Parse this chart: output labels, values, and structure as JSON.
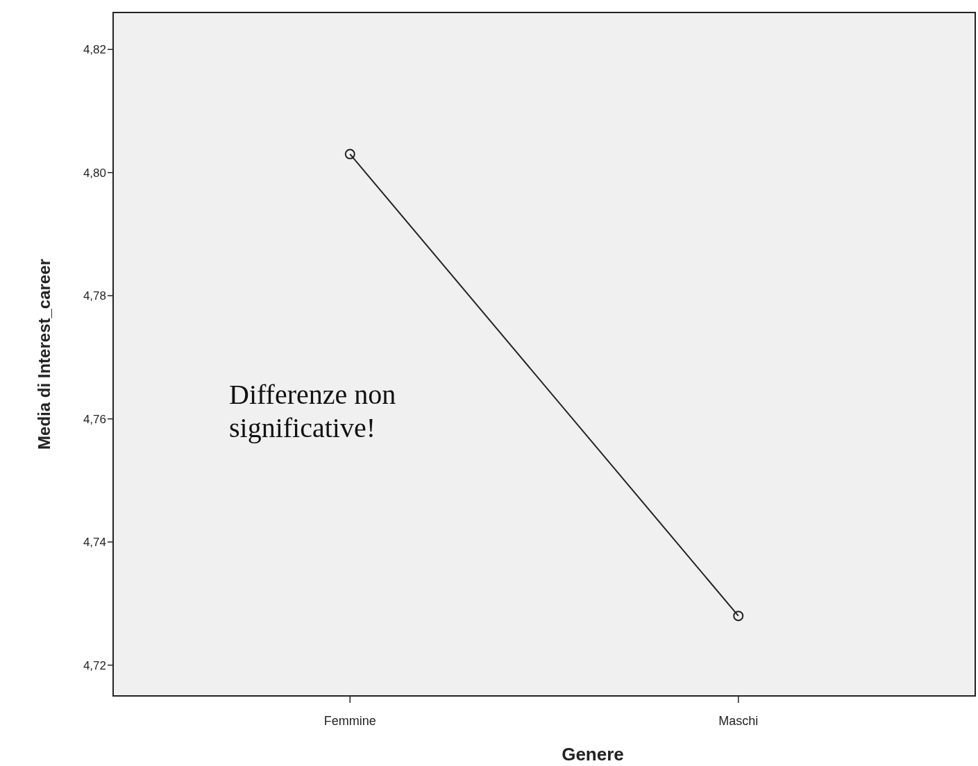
{
  "chart_data": {
    "type": "line",
    "xlabel": "Genere",
    "ylabel": "Media di Interest_career",
    "categories": [
      "Femmine",
      "Maschi"
    ],
    "series": [
      {
        "color": "#222222",
        "values": [
          4.803,
          4.728
        ]
      }
    ],
    "ylim": [
      4.715,
      4.826
    ],
    "yticks": [
      {
        "value": 4.72,
        "label": "4,72"
      },
      {
        "value": 4.74,
        "label": "4,74"
      },
      {
        "value": 4.76,
        "label": "4,76"
      },
      {
        "value": 4.78,
        "label": "4,78"
      },
      {
        "value": 4.8,
        "label": "4,80"
      },
      {
        "value": 4.82,
        "label": "4,82"
      }
    ],
    "marker": "circle",
    "grid": false,
    "annotations": [
      "Differenze non significative!"
    ]
  }
}
